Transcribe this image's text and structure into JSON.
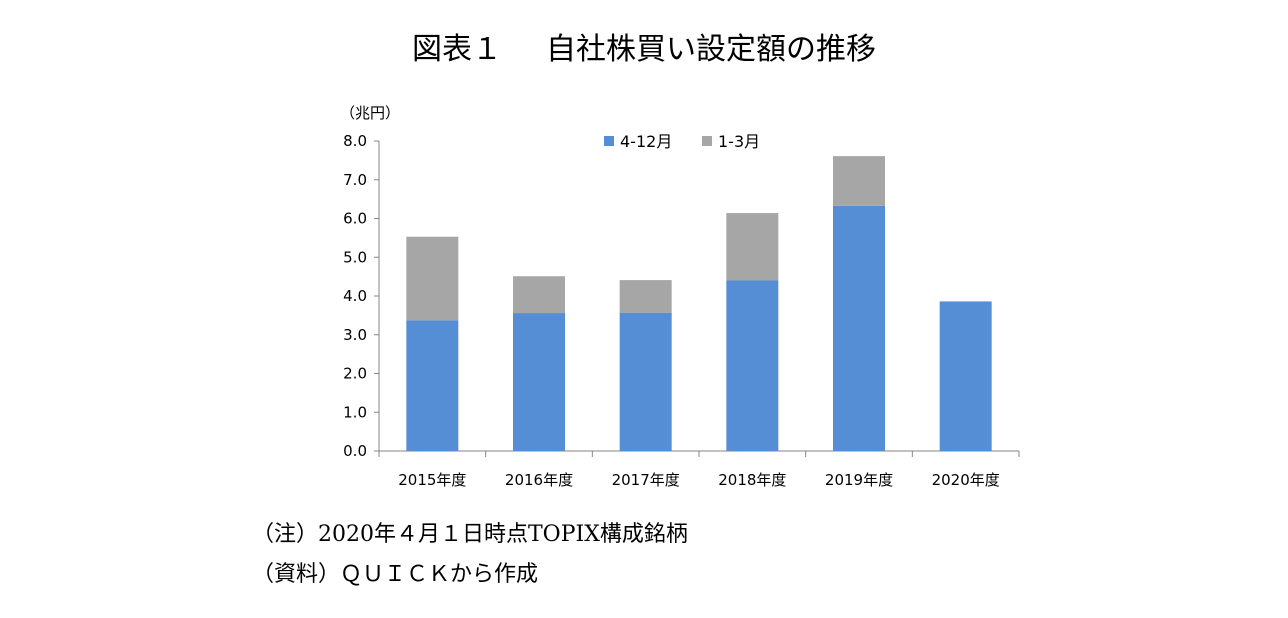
{
  "title": {
    "figure_label": "図表１",
    "text": "自社株買い設定額の推移"
  },
  "notes": {
    "note": "（注）2020年４月１日時点TOPIX構成銘柄",
    "source": "（資料）ＱＵＩＣＫから作成"
  },
  "chart_data": {
    "type": "bar",
    "stacked": true,
    "unit_label": "（兆円）",
    "categories": [
      "2015年度",
      "2016年度",
      "2017年度",
      "2018年度",
      "2019年度",
      "2020年度"
    ],
    "series": [
      {
        "name": "4-12月",
        "color": "#558ed5",
        "values": [
          3.37,
          3.56,
          3.57,
          4.4,
          6.33,
          3.86
        ]
      },
      {
        "name": "1-3月",
        "color": "#a6a6a6",
        "values": [
          2.16,
          0.95,
          0.84,
          1.74,
          1.28,
          0
        ]
      }
    ],
    "ylim": [
      0,
      8
    ],
    "yticks": [
      "0.0",
      "1.0",
      "2.0",
      "3.0",
      "4.0",
      "5.0",
      "6.0",
      "7.0",
      "8.0"
    ],
    "grid": false,
    "legend_position": "top-center"
  }
}
